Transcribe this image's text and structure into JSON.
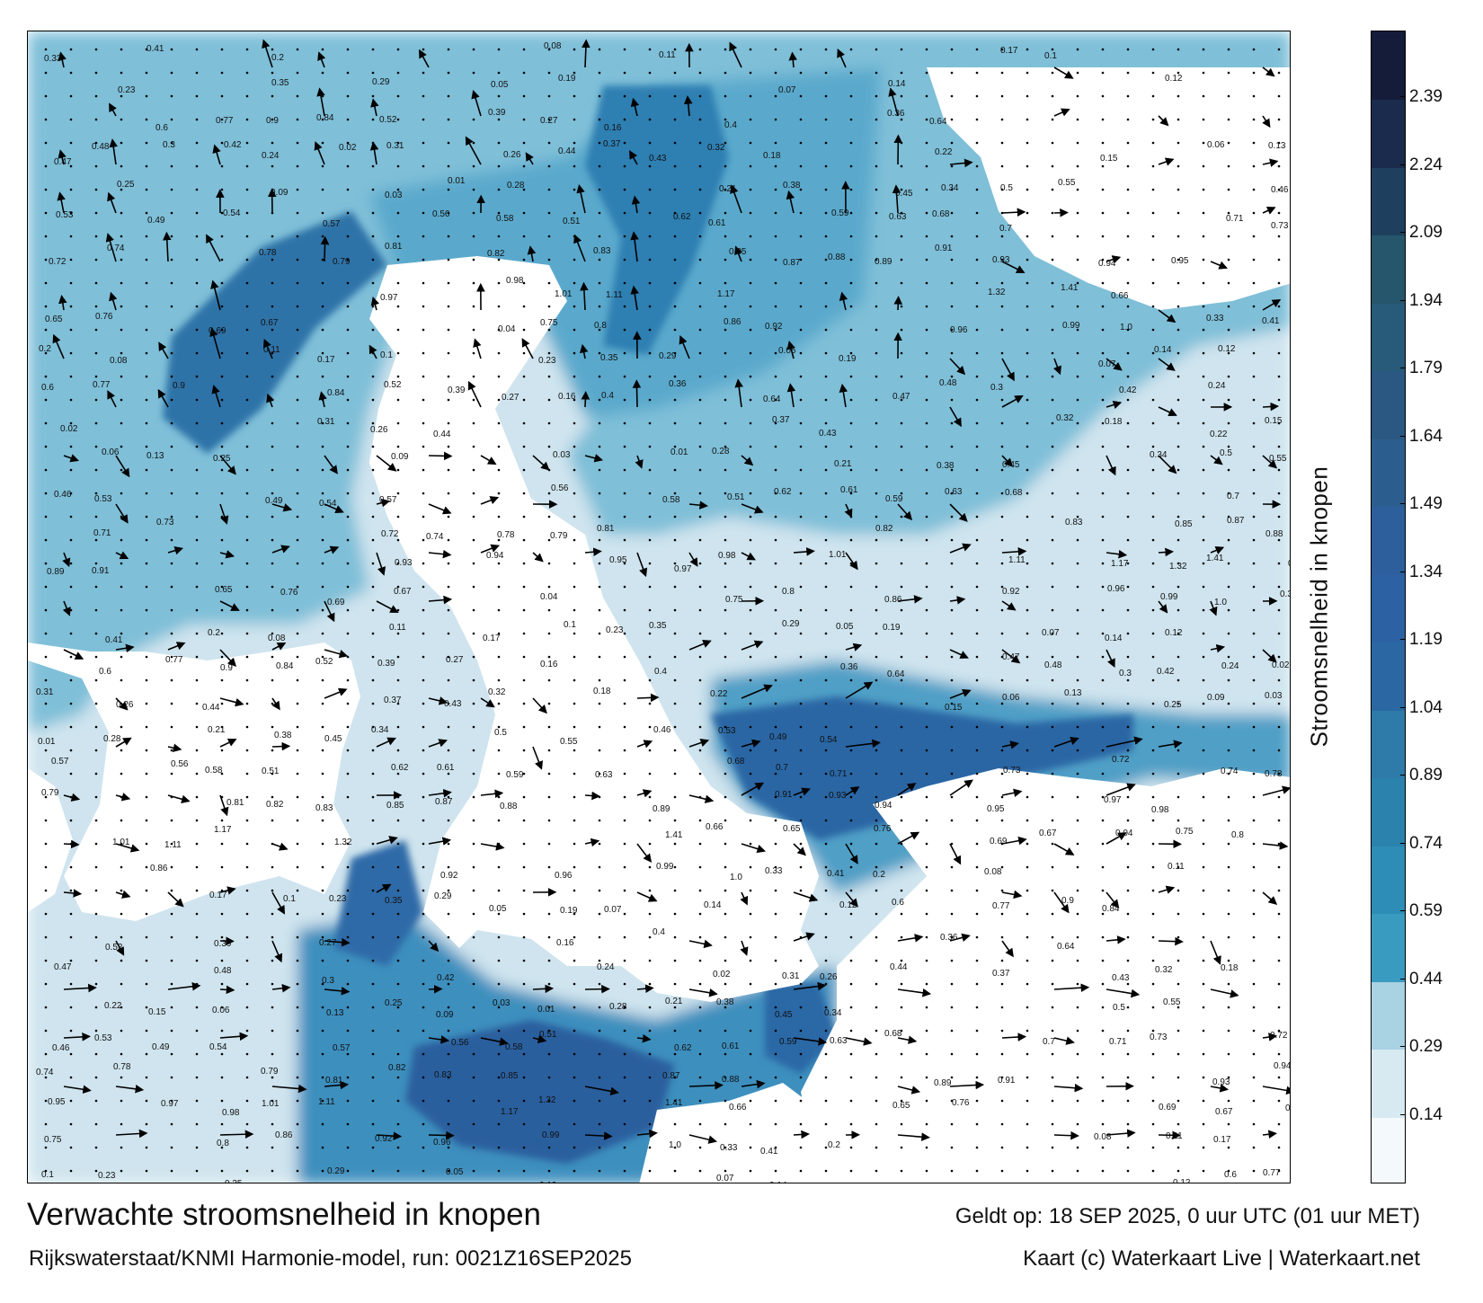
{
  "title": "Verwachte stroomsnelheid in knopen",
  "valid_time": "Geldt op: 18 SEP 2025, 0 uur UTC (01 uur MET)",
  "source": "Rijkswaterstaat/KNMI Harmonie-model, run: 0021Z16SEP2025",
  "credit": "Kaart (c) Waterkaart Live | Waterkaart.net",
  "colorbar": {
    "label": "Stroomsnelheid in knopen",
    "ticks": [
      "0.14",
      "0.29",
      "0.44",
      "0.59",
      "0.74",
      "0.89",
      "1.04",
      "1.19",
      "1.34",
      "1.49",
      "1.64",
      "1.79",
      "1.94",
      "2.09",
      "2.24",
      "2.39"
    ],
    "colors": [
      "#f4f9fb",
      "#d7eaf2",
      "#a9d2e3",
      "#3a9bc1",
      "#2d8db6",
      "#2b82ad",
      "#2e7aa8",
      "#2b68a3",
      "#2c62a4",
      "#2c5f9b",
      "#2b5e8f",
      "#2a5882",
      "#285a7a",
      "#26566b",
      "#1f3f5e",
      "#1b2b4d",
      "#141c3a"
    ]
  },
  "map_labels": [
    "0.33",
    "0.41",
    "0.2",
    "0.08",
    "0.11",
    "0.17",
    "0.1",
    "0.23",
    "0.35",
    "0.29",
    "0.05",
    "0.19",
    "0.07",
    "0.14",
    "0.12",
    "0.6",
    "0.77",
    "0.9",
    "0.84",
    "0.52",
    "0.39",
    "0.27",
    "0.16",
    "0.4",
    "0.36",
    "0.64",
    "0.47",
    "0.48",
    "0.3",
    "0.42",
    "0.24",
    "0.02",
    "0.31",
    "0.26",
    "0.44",
    "0.37",
    "0.43",
    "0.32",
    "0.18",
    "0.22",
    "0.15",
    "0.06",
    "0.13",
    "0.25",
    "0.09",
    "0.03",
    "0.01",
    "0.28",
    "0.21",
    "0.38",
    "0.45",
    "0.34",
    "0.5",
    "0.55",
    "0.46",
    "0.53",
    "0.49",
    "0.54",
    "0.57",
    "0.56",
    "0.58",
    "0.51",
    "0.62",
    "0.61",
    "0.59",
    "0.63",
    "0.68",
    "0.7",
    "0.71",
    "0.73",
    "0.72",
    "0.74",
    "0.78",
    "0.79",
    "0.81",
    "0.82",
    "0.83",
    "0.85",
    "0.87",
    "0.88",
    "0.89",
    "0.91",
    "0.93",
    "0.94",
    "0.95",
    "0.97",
    "0.98",
    "1.01",
    "1.11",
    "1.17",
    "1.32",
    "1.41",
    "0.66",
    "0.65",
    "0.76",
    "0.69",
    "0.67",
    "0.04",
    "0.75",
    "0.8",
    "0.86",
    "0.92",
    "0.96",
    "0.99",
    "1.0"
  ]
}
